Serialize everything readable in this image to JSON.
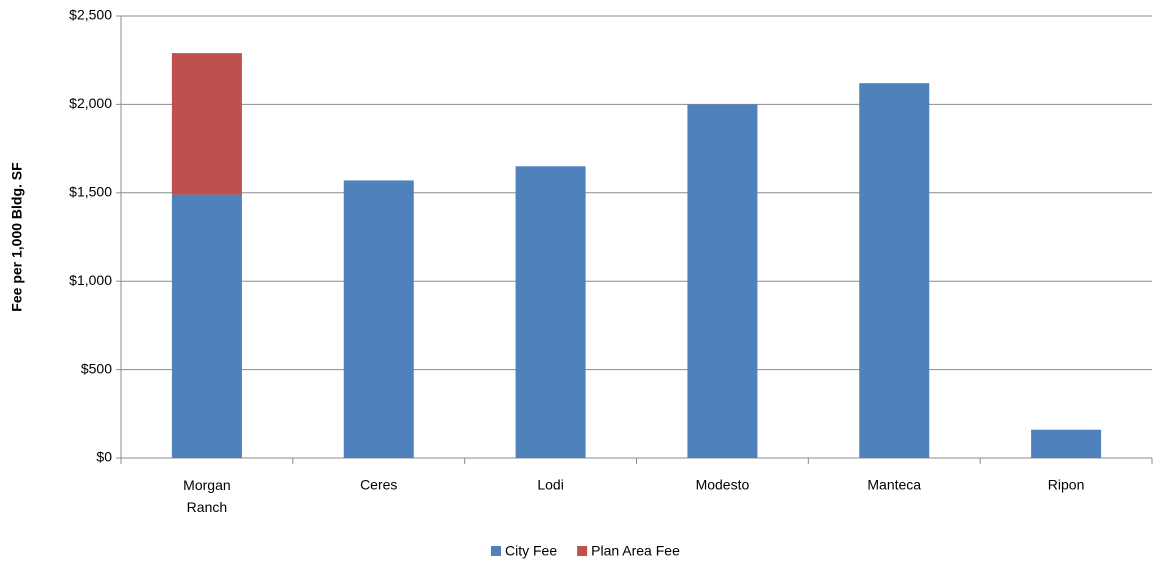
{
  "chart_data": {
    "type": "bar",
    "stacked": true,
    "y_label": "Fee per 1,000 Bldg. SF",
    "categories": [
      "Morgan Ranch",
      "Ceres",
      "Lodi",
      "Modesto",
      "Manteca",
      "Ripon"
    ],
    "series": [
      {
        "name": "City Fee",
        "color": "#4f81bd",
        "values": [
          1490,
          1570,
          1650,
          2000,
          2120,
          160
        ]
      },
      {
        "name": "Plan Area Fee",
        "color": "#c0504d",
        "values": [
          800,
          0,
          0,
          0,
          0,
          0
        ]
      }
    ],
    "ylim": [
      0,
      2500
    ],
    "yticks": [
      {
        "value": 0,
        "label": "$0"
      },
      {
        "value": 500,
        "label": "$500"
      },
      {
        "value": 1000,
        "label": "$1,000"
      },
      {
        "value": 1500,
        "label": "$1,500"
      },
      {
        "value": 2000,
        "label": "$2,000"
      },
      {
        "value": 2500,
        "label": "$2,500"
      }
    ],
    "grid": true,
    "legend": "bottom"
  }
}
